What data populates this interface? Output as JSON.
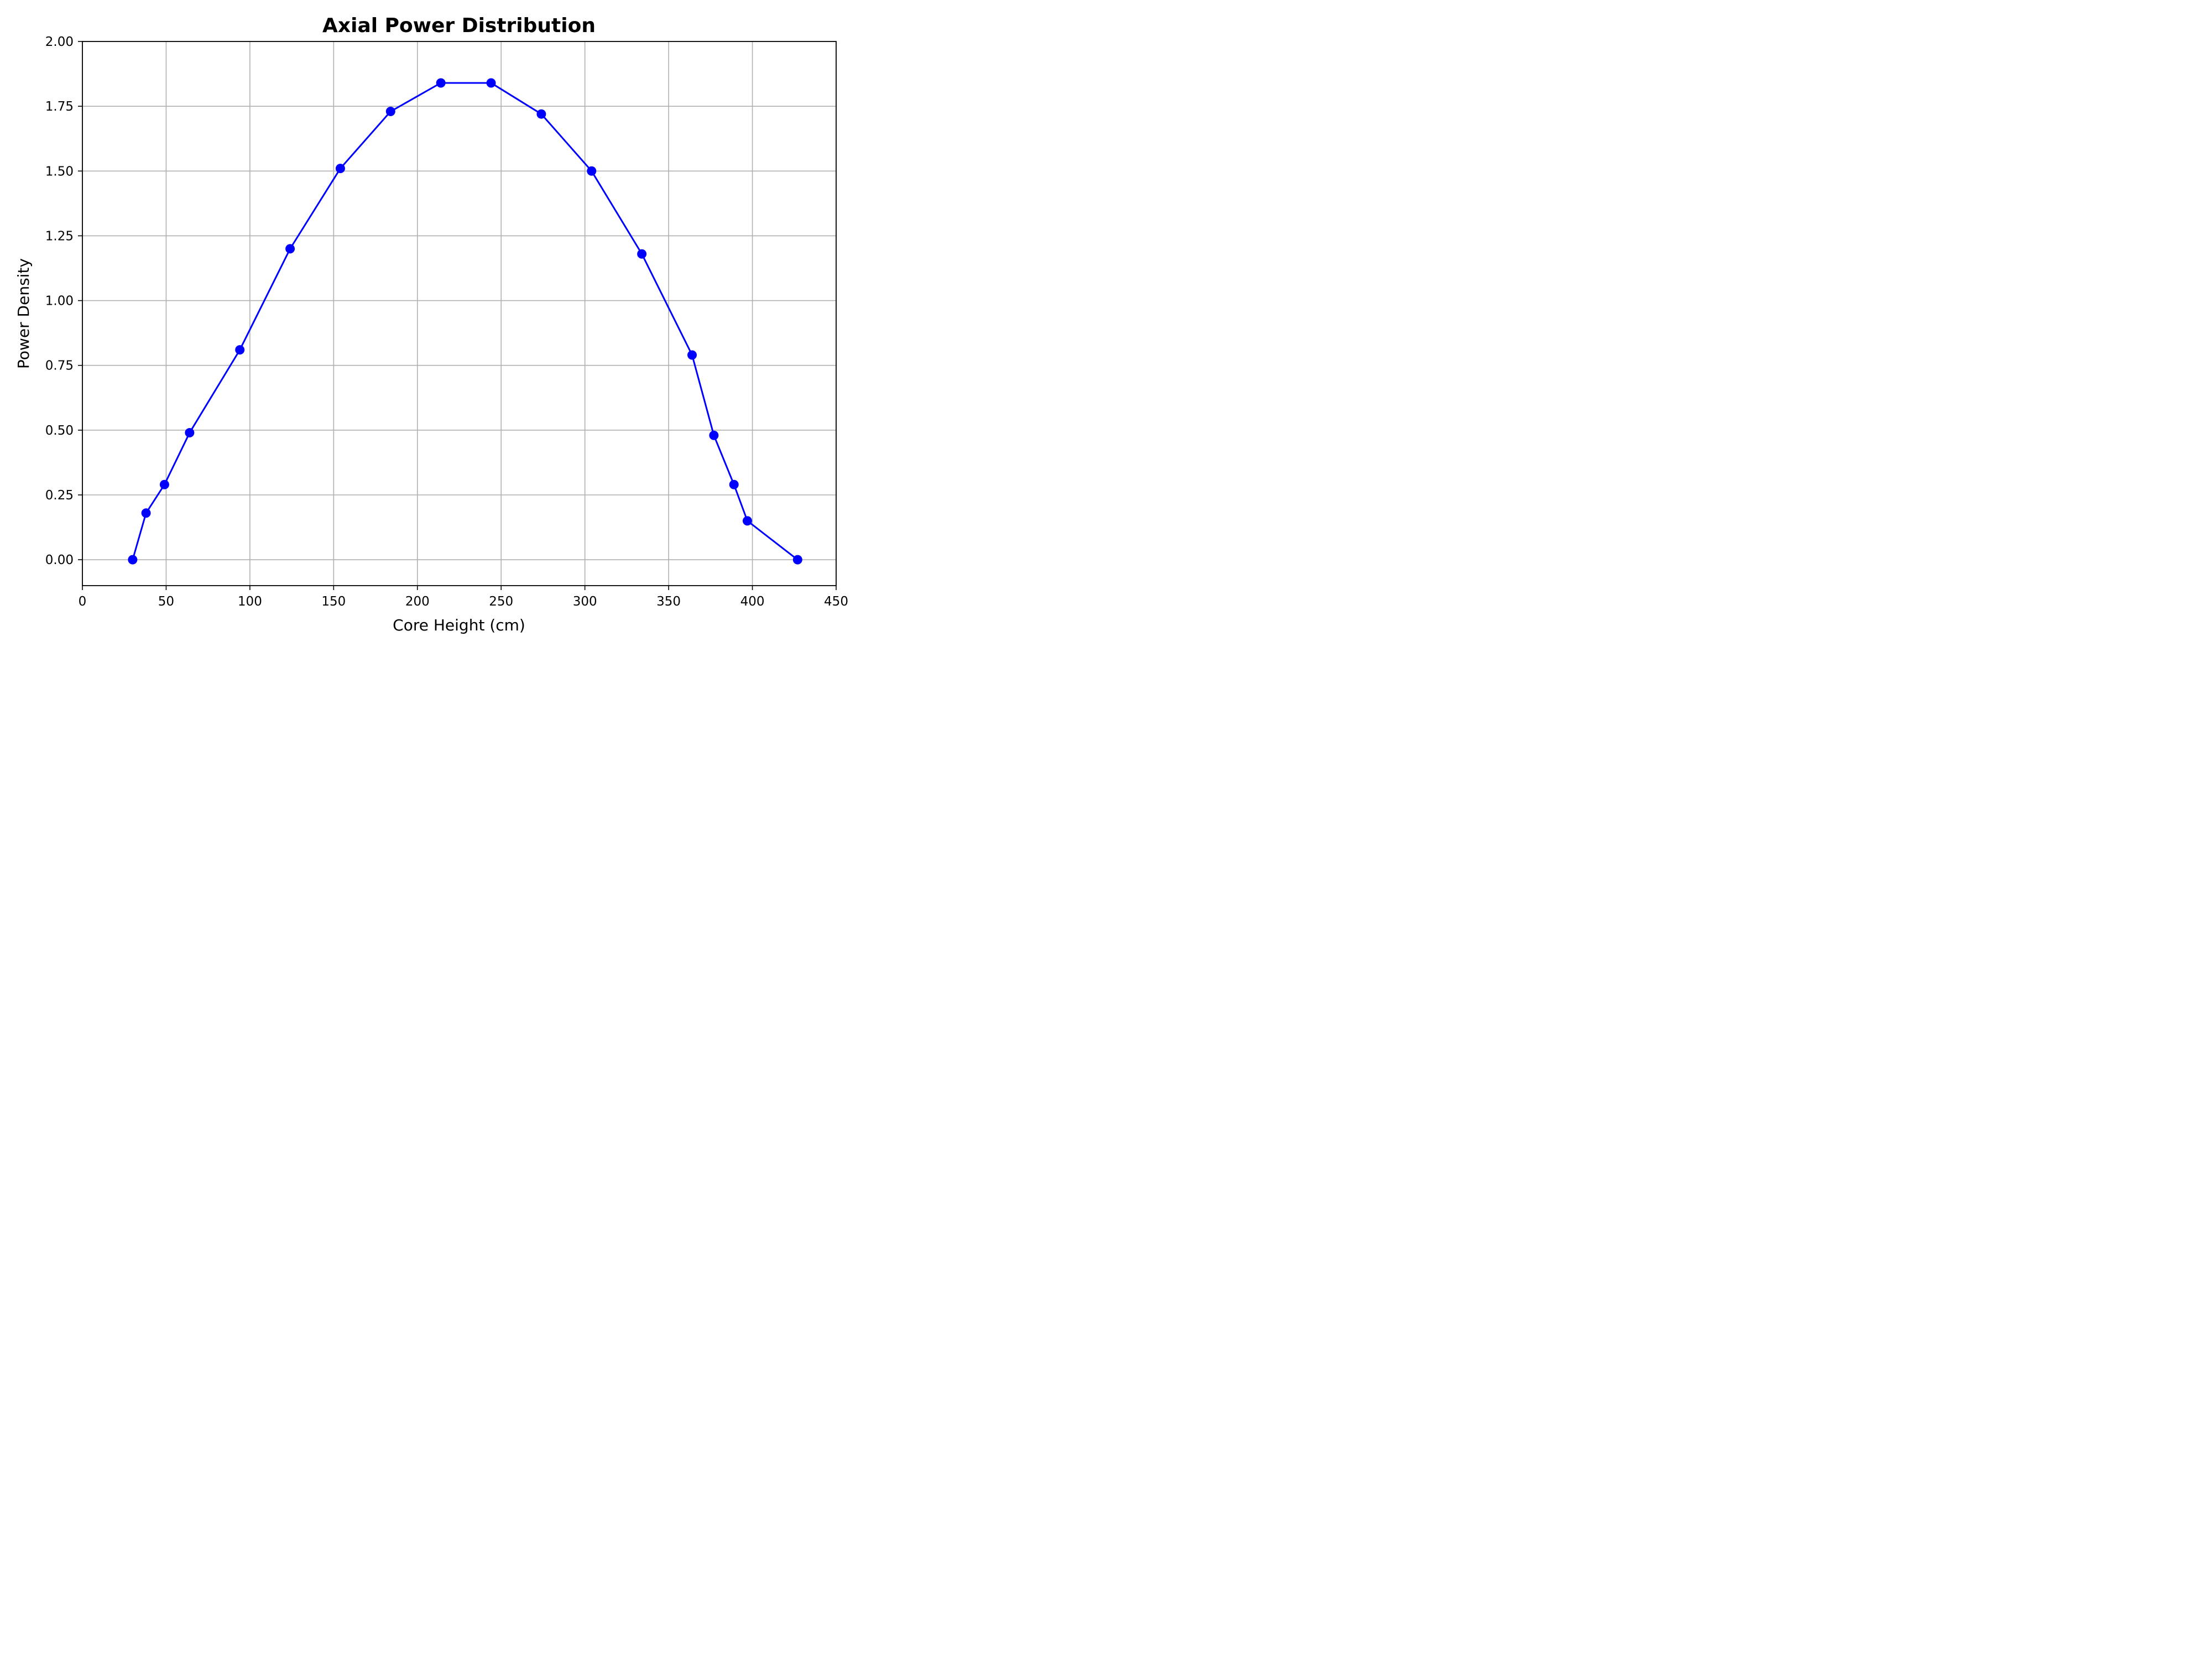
{
  "chart_data": {
    "type": "line",
    "title": "Axial Power Distribution",
    "xlabel": "Core Height (cm)",
    "ylabel": "Power Density",
    "xlim": [
      0,
      450
    ],
    "ylim": [
      -0.1,
      2.0
    ],
    "xticks": [
      0,
      50,
      100,
      150,
      200,
      250,
      300,
      350,
      400,
      450
    ],
    "xtick_labels": [
      "0",
      "50",
      "100",
      "150",
      "200",
      "250",
      "300",
      "350",
      "400",
      "450"
    ],
    "yticks": [
      0.0,
      0.25,
      0.5,
      0.75,
      1.0,
      1.25,
      1.5,
      1.75,
      2.0
    ],
    "ytick_labels": [
      "0.00",
      "0.25",
      "0.50",
      "0.75",
      "1.00",
      "1.25",
      "1.50",
      "1.75",
      "2.00"
    ],
    "grid": true,
    "series": [
      {
        "color": "#0000ff",
        "marker": "circle",
        "x": [
          30,
          38,
          49,
          64,
          94,
          124,
          154,
          184,
          214,
          244,
          274,
          304,
          334,
          364,
          377,
          389,
          397,
          427
        ],
        "y": [
          0.0,
          0.18,
          0.29,
          0.49,
          0.81,
          1.2,
          1.51,
          1.73,
          1.84,
          1.84,
          1.72,
          1.5,
          1.18,
          0.79,
          0.48,
          0.29,
          0.15,
          0.0
        ]
      }
    ]
  }
}
